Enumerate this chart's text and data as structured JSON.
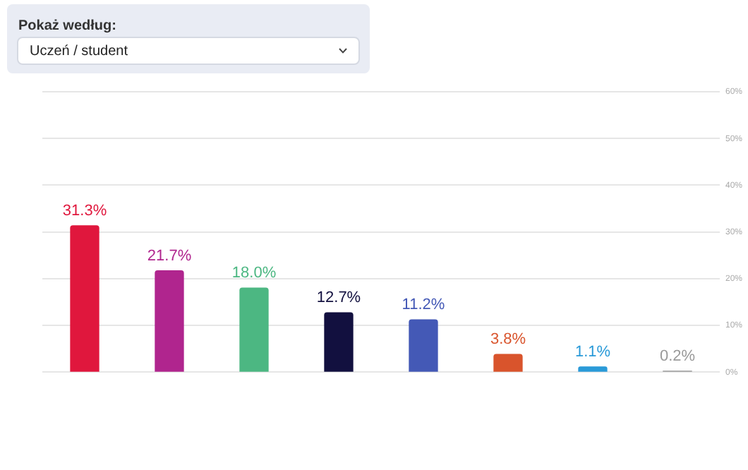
{
  "chart_data": {
    "type": "bar",
    "annotations": [
      "Pokaż według:",
      "Uczeń / student"
    ],
    "categories": [
      null,
      null,
      null,
      null,
      null,
      null,
      null,
      null
    ],
    "values": [
      31.3,
      21.7,
      18.0,
      12.7,
      11.2,
      3.8,
      1.1,
      0.2
    ],
    "colors": [
      "#e0173d",
      "#b0258e",
      "#4cb782",
      "#12103f",
      "#4459b6",
      "#d9542c",
      "#2a9ad8",
      "#9a9a9a"
    ],
    "value_labels": [
      "31.3%",
      "21.7%",
      "18.0%",
      "12.7%",
      "11.2%",
      "3.8%",
      "1.1%",
      "0.2%"
    ],
    "ylim": [
      0,
      60
    ],
    "yticks": [
      {
        "value": 0,
        "label": "0%"
      },
      {
        "value": 10,
        "label": "10%"
      },
      {
        "value": 20,
        "label": "20%"
      },
      {
        "value": 30,
        "label": "30%"
      },
      {
        "value": 40,
        "label": "40%"
      },
      {
        "value": 50,
        "label": "50%"
      },
      {
        "value": 60,
        "label": "60%"
      }
    ],
    "grid": "y",
    "legend": false
  }
}
